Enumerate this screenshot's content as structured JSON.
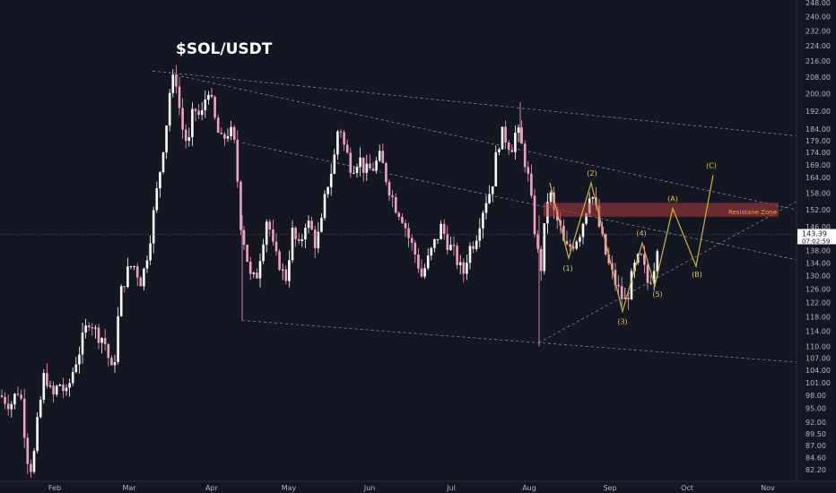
{
  "chart_data": {
    "type": "candlestick",
    "title": "$SOL/USDT",
    "y_axis": {
      "side": "right",
      "range": [
        80.0,
        250.0
      ],
      "log_scale": true,
      "ticks": [
        "82.20",
        "84.60",
        "87.00",
        "89.50",
        "92.00",
        "95.00",
        "98.00",
        "101.00",
        "104.00",
        "107.00",
        "110.00",
        "114.00",
        "118.00",
        "122.00",
        "126.00",
        "130.00",
        "134.00",
        "138.00",
        "146.00",
        "152.00",
        "158.00",
        "164.00",
        "169.00",
        "174.00",
        "179.00",
        "184.00",
        "192.00",
        "200.00",
        "208.00",
        "216.00",
        "224.00",
        "232.00",
        "240.00",
        "248.00"
      ]
    },
    "x_axis": {
      "months": [
        "Feb",
        "Mar",
        "Apr",
        "May",
        "Jun",
        "Jul",
        "Aug",
        "Sep",
        "Oct",
        "Nov"
      ]
    },
    "current_price": {
      "label": "143.39",
      "countdown": "07:02:59",
      "value": 143.39
    },
    "resistance_zone": {
      "label": "Resistane Zone",
      "low": 149.5,
      "high": 154.5
    },
    "wave_labels": [
      {
        "label": "(1)",
        "value": 135.5
      },
      {
        "label": "(2)",
        "value": 162.0
      },
      {
        "label": "(3)",
        "value": 119.5
      },
      {
        "label": "(4)",
        "value": 140.5
      },
      {
        "label": "(5)",
        "value": 127.0
      },
      {
        "label": "(A)",
        "value": 152.5
      },
      {
        "label": "(B)",
        "value": 133.0
      },
      {
        "label": "(C)",
        "value": 165.0
      }
    ],
    "grid": false,
    "up_color": "#ffffff",
    "down_color": "#f4a0c0",
    "wave_color": "#c9b53a",
    "background": "#131722"
  }
}
